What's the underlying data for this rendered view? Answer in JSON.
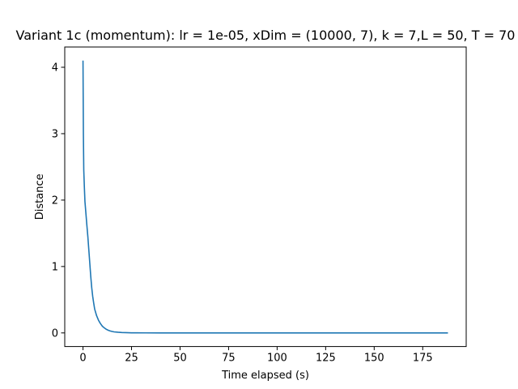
{
  "chart_data": {
    "type": "line",
    "title": "Variant 1c (momentum): lr = 1e-05, xDim = (10000, 7), k = 7,L = 50, T = 70",
    "xlabel": "Time elapsed (s)",
    "ylabel": "Distance",
    "xlim": [
      -9.4,
      197.4
    ],
    "ylim": [
      -0.205,
      4.305
    ],
    "xticks": [
      0,
      25,
      50,
      75,
      100,
      125,
      150,
      175
    ],
    "yticks": [
      0,
      1,
      2,
      3,
      4
    ],
    "grid": false,
    "series": [
      {
        "color": "#1f77b4",
        "x": [
          0,
          0.2,
          0.4,
          0.7,
          1.0,
          1.5,
          2.0,
          2.5,
          3.0,
          3.5,
          4.0,
          4.5,
          5.0,
          5.5,
          6.0,
          7.0,
          8.0,
          9.0,
          10.0,
          11.0,
          12.0,
          13.0,
          14.0,
          15.0,
          16.0,
          18.0,
          20.0,
          22.0,
          25.0,
          28.0,
          32.0,
          40.0,
          60.0,
          80.0,
          100.0,
          120.0,
          140.0,
          160.0,
          188.0
        ],
        "y": [
          4.1,
          3.0,
          2.45,
          2.2,
          1.98,
          1.8,
          1.62,
          1.45,
          1.25,
          1.05,
          0.85,
          0.68,
          0.55,
          0.45,
          0.36,
          0.26,
          0.19,
          0.14,
          0.1,
          0.075,
          0.055,
          0.04,
          0.03,
          0.022,
          0.016,
          0.01,
          0.006,
          0.004,
          0.002,
          0.001,
          0.0005,
          0.0002,
          0.0001,
          0.0,
          0.0,
          0.0,
          0.0,
          0.0,
          0.0
        ]
      }
    ]
  }
}
